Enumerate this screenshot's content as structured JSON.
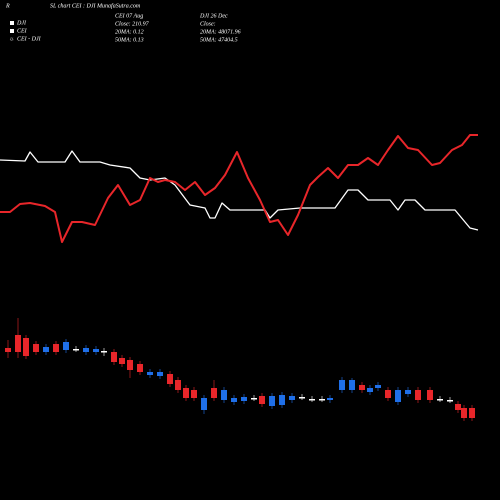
{
  "header": {
    "corner": "R",
    "title": "SL chart CEI : DJI MunafaSutra.com",
    "info_left": [
      "CEI 07 Aug",
      "Close: 210.97",
      "20MA: 0.12",
      "50MA: 0.13"
    ],
    "info_right": [
      "DJI 26 Dec",
      "Close:",
      "20MA: 48071.96",
      "50MA: 47404.5"
    ]
  },
  "chart_data": [
    {
      "type": "line",
      "xlim": [
        0,
        500
      ],
      "ylim": [
        0,
        120
      ],
      "series": [
        {
          "name": "DJI",
          "color": "#ffffff",
          "x": [
            0,
            25,
            30,
            38,
            65,
            72,
            80,
            100,
            110,
            130,
            140,
            150,
            165,
            175,
            190,
            205,
            210,
            215,
            222,
            230,
            265,
            270,
            278,
            300,
            335,
            348,
            358,
            368,
            390,
            398,
            405,
            415,
            425,
            455,
            470,
            478
          ],
          "values": [
            90,
            89,
            98,
            88,
            88,
            99,
            88,
            88,
            85,
            82,
            72,
            70,
            72,
            65,
            45,
            42,
            32,
            32,
            47,
            40,
            40,
            32,
            40,
            42,
            42,
            60,
            60,
            50,
            50,
            40,
            50,
            50,
            40,
            40,
            22,
            20
          ]
        },
        {
          "name": "CEI",
          "color": "#e8262a",
          "x": [
            0,
            10,
            20,
            30,
            45,
            55,
            62,
            72,
            82,
            95,
            108,
            118,
            130,
            140,
            150,
            158,
            165,
            175,
            185,
            195,
            205,
            215,
            225,
            237,
            248,
            260,
            270,
            278,
            288,
            298,
            310,
            318,
            328,
            338,
            348,
            358,
            368,
            378,
            388,
            398,
            408,
            418,
            432,
            440,
            452,
            462,
            470,
            478
          ],
          "values": [
            38,
            38,
            46,
            47,
            44,
            38,
            8,
            28,
            28,
            25,
            52,
            65,
            45,
            50,
            72,
            68,
            70,
            68,
            60,
            68,
            55,
            62,
            75,
            98,
            72,
            50,
            28,
            30,
            15,
            35,
            65,
            73,
            82,
            72,
            85,
            85,
            92,
            85,
            100,
            114,
            102,
            100,
            85,
            87,
            100,
            105,
            115,
            115
          ]
        }
      ]
    },
    {
      "type": "candlestick",
      "name": "CEI - DJI",
      "xlim": [
        0,
        500
      ],
      "ylim": [
        0,
        150
      ],
      "up_color": "#1f6fe8",
      "down_color": "#e8262a",
      "flat_color": "#ffffff",
      "x": [
        8,
        18,
        26,
        36,
        46,
        56,
        66,
        76,
        86,
        96,
        104,
        114,
        122,
        130,
        140,
        150,
        160,
        170,
        178,
        186,
        194,
        204,
        214,
        224,
        234,
        244,
        254,
        262,
        272,
        282,
        292,
        302,
        312,
        322,
        330,
        342,
        352,
        362,
        370,
        378,
        388,
        398,
        408,
        418,
        430,
        440,
        450,
        458,
        464,
        472
      ],
      "open": [
        102,
        115,
        112,
        106,
        98,
        106,
        100,
        101,
        98,
        98,
        99,
        98,
        92,
        90,
        86,
        75,
        74,
        76,
        70,
        62,
        60,
        40,
        62,
        50,
        48,
        49,
        52,
        54,
        44,
        45,
        50,
        53,
        51,
        51,
        50,
        60,
        60,
        65,
        58,
        62,
        60,
        48,
        56,
        60,
        60,
        51,
        50,
        46,
        42,
        42
      ],
      "close": [
        98,
        98,
        94,
        98,
        103,
        98,
        108,
        101,
        102,
        101,
        99,
        88,
        86,
        80,
        78,
        78,
        78,
        66,
        60,
        52,
        52,
        52,
        52,
        60,
        52,
        53,
        52,
        46,
        54,
        55,
        54,
        53,
        51,
        51,
        52,
        70,
        70,
        60,
        62,
        65,
        52,
        60,
        60,
        50,
        50,
        51,
        50,
        40,
        32,
        32
      ],
      "high": [
        110,
        132,
        115,
        109,
        106,
        109,
        111,
        104,
        105,
        104,
        102,
        101,
        95,
        93,
        89,
        81,
        81,
        79,
        73,
        65,
        63,
        55,
        70,
        63,
        55,
        56,
        55,
        57,
        57,
        58,
        57,
        56,
        54,
        54,
        55,
        73,
        72,
        68,
        65,
        68,
        63,
        63,
        63,
        63,
        63,
        54,
        53,
        49,
        45,
        45
      ],
      "low": [
        92,
        92,
        91,
        95,
        95,
        95,
        97,
        98,
        95,
        95,
        94,
        85,
        83,
        72,
        75,
        72,
        71,
        63,
        57,
        49,
        49,
        36,
        49,
        47,
        45,
        46,
        49,
        43,
        41,
        42,
        47,
        50,
        48,
        48,
        47,
        57,
        57,
        57,
        55,
        59,
        49,
        45,
        53,
        47,
        47,
        48,
        47,
        37,
        29,
        29
      ]
    }
  ]
}
